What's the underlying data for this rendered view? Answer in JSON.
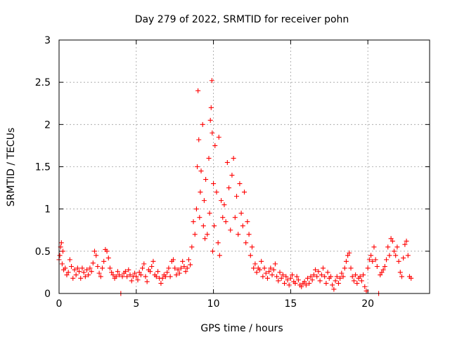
{
  "chart_data": {
    "type": "scatter",
    "title": "Day 279 of 2022, SRMTID for receiver pohn",
    "xlabel": "GPS time / hours",
    "ylabel": "SRMTID / TECUs",
    "xlim": [
      0,
      24
    ],
    "ylim": [
      0,
      3
    ],
    "x_ticks": [
      0,
      5,
      10,
      15,
      20
    ],
    "x_tick_labels": [
      "0",
      "5",
      "10",
      "15",
      "20"
    ],
    "y_ticks": [
      0,
      0.5,
      1,
      1.5,
      2,
      2.5,
      3
    ],
    "y_tick_labels": [
      "0",
      "0.5",
      "1",
      "1.5",
      "2",
      "2.5",
      "3"
    ],
    "grid": true,
    "marker": "+",
    "series": [
      {
        "name": "pohn",
        "color": "#ff0000",
        "points": [
          [
            0.0,
            0.4
          ],
          [
            0.05,
            0.45
          ],
          [
            0.1,
            0.55
          ],
          [
            0.15,
            0.6
          ],
          [
            0.2,
            0.35
          ],
          [
            0.25,
            0.5
          ],
          [
            0.3,
            0.28
          ],
          [
            0.4,
            0.3
          ],
          [
            0.5,
            0.22
          ],
          [
            0.6,
            0.25
          ],
          [
            0.7,
            0.4
          ],
          [
            0.8,
            0.32
          ],
          [
            0.9,
            0.18
          ],
          [
            1.0,
            0.28
          ],
          [
            1.1,
            0.22
          ],
          [
            1.2,
            0.3
          ],
          [
            1.3,
            0.26
          ],
          [
            1.4,
            0.18
          ],
          [
            1.5,
            0.3
          ],
          [
            1.6,
            0.25
          ],
          [
            1.7,
            0.2
          ],
          [
            1.8,
            0.28
          ],
          [
            1.9,
            0.22
          ],
          [
            2.0,
            0.3
          ],
          [
            2.1,
            0.26
          ],
          [
            2.2,
            0.36
          ],
          [
            2.3,
            0.5
          ],
          [
            2.4,
            0.45
          ],
          [
            2.5,
            0.32
          ],
          [
            2.6,
            0.24
          ],
          [
            2.7,
            0.2
          ],
          [
            2.8,
            0.3
          ],
          [
            2.9,
            0.38
          ],
          [
            3.0,
            0.52
          ],
          [
            3.1,
            0.5
          ],
          [
            3.2,
            0.42
          ],
          [
            3.3,
            0.3
          ],
          [
            3.4,
            0.25
          ],
          [
            3.5,
            0.22
          ],
          [
            3.6,
            0.18
          ],
          [
            3.7,
            0.2
          ],
          [
            3.8,
            0.26
          ],
          [
            3.9,
            0.22
          ],
          [
            4.0,
            0.0
          ],
          [
            4.1,
            0.2
          ],
          [
            4.2,
            0.24
          ],
          [
            4.3,
            0.26
          ],
          [
            4.4,
            0.2
          ],
          [
            4.5,
            0.28
          ],
          [
            4.6,
            0.22
          ],
          [
            4.7,
            0.15
          ],
          [
            4.8,
            0.2
          ],
          [
            4.9,
            0.24
          ],
          [
            5.0,
            0.2
          ],
          [
            5.1,
            0.16
          ],
          [
            5.2,
            0.25
          ],
          [
            5.3,
            0.22
          ],
          [
            5.4,
            0.3
          ],
          [
            5.5,
            0.35
          ],
          [
            5.6,
            0.2
          ],
          [
            5.7,
            0.14
          ],
          [
            5.8,
            0.28
          ],
          [
            5.9,
            0.26
          ],
          [
            6.0,
            0.32
          ],
          [
            6.1,
            0.38
          ],
          [
            6.2,
            0.22
          ],
          [
            6.3,
            0.2
          ],
          [
            6.4,
            0.26
          ],
          [
            6.5,
            0.18
          ],
          [
            6.6,
            0.12
          ],
          [
            6.7,
            0.18
          ],
          [
            6.8,
            0.22
          ],
          [
            6.9,
            0.2
          ],
          [
            7.0,
            0.25
          ],
          [
            7.1,
            0.3
          ],
          [
            7.2,
            0.2
          ],
          [
            7.3,
            0.38
          ],
          [
            7.4,
            0.4
          ],
          [
            7.5,
            0.3
          ],
          [
            7.6,
            0.22
          ],
          [
            7.7,
            0.28
          ],
          [
            7.8,
            0.24
          ],
          [
            7.9,
            0.3
          ],
          [
            8.0,
            0.38
          ],
          [
            8.1,
            0.32
          ],
          [
            8.2,
            0.26
          ],
          [
            8.3,
            0.3
          ],
          [
            8.4,
            0.4
          ],
          [
            8.5,
            0.34
          ],
          [
            8.6,
            0.55
          ],
          [
            8.7,
            0.85
          ],
          [
            8.8,
            0.7
          ],
          [
            8.9,
            1.0
          ],
          [
            8.95,
            1.5
          ],
          [
            9.0,
            2.4
          ],
          [
            9.05,
            1.82
          ],
          [
            9.1,
            0.9
          ],
          [
            9.15,
            1.2
          ],
          [
            9.2,
            1.45
          ],
          [
            9.3,
            2.0
          ],
          [
            9.35,
            0.8
          ],
          [
            9.4,
            1.1
          ],
          [
            9.45,
            0.65
          ],
          [
            9.5,
            1.35
          ],
          [
            9.6,
            0.7
          ],
          [
            9.7,
            1.6
          ],
          [
            9.75,
            0.95
          ],
          [
            9.8,
            2.05
          ],
          [
            9.85,
            2.2
          ],
          [
            9.9,
            2.52
          ],
          [
            9.92,
            1.9
          ],
          [
            9.95,
            0.5
          ],
          [
            10.0,
            1.3
          ],
          [
            10.05,
            0.8
          ],
          [
            10.1,
            1.75
          ],
          [
            10.2,
            1.2
          ],
          [
            10.3,
            0.6
          ],
          [
            10.35,
            1.85
          ],
          [
            10.4,
            0.45
          ],
          [
            10.5,
            1.1
          ],
          [
            10.6,
            0.9
          ],
          [
            10.7,
            1.05
          ],
          [
            10.8,
            0.85
          ],
          [
            10.9,
            1.55
          ],
          [
            11.0,
            1.25
          ],
          [
            11.1,
            0.75
          ],
          [
            11.2,
            1.4
          ],
          [
            11.3,
            1.6
          ],
          [
            11.4,
            0.9
          ],
          [
            11.5,
            1.15
          ],
          [
            11.6,
            0.7
          ],
          [
            11.7,
            1.3
          ],
          [
            11.8,
            0.95
          ],
          [
            11.9,
            0.8
          ],
          [
            12.0,
            1.2
          ],
          [
            12.1,
            0.6
          ],
          [
            12.2,
            0.85
          ],
          [
            12.3,
            0.7
          ],
          [
            12.4,
            0.45
          ],
          [
            12.5,
            0.55
          ],
          [
            12.6,
            0.3
          ],
          [
            12.7,
            0.35
          ],
          [
            12.8,
            0.25
          ],
          [
            12.9,
            0.3
          ],
          [
            13.0,
            0.28
          ],
          [
            13.1,
            0.38
          ],
          [
            13.2,
            0.2
          ],
          [
            13.3,
            0.3
          ],
          [
            13.4,
            0.24
          ],
          [
            13.5,
            0.18
          ],
          [
            13.6,
            0.26
          ],
          [
            13.7,
            0.3
          ],
          [
            13.8,
            0.22
          ],
          [
            13.9,
            0.28
          ],
          [
            14.0,
            0.35
          ],
          [
            14.1,
            0.2
          ],
          [
            14.2,
            0.15
          ],
          [
            14.3,
            0.25
          ],
          [
            14.4,
            0.18
          ],
          [
            14.5,
            0.22
          ],
          [
            14.6,
            0.12
          ],
          [
            14.7,
            0.2
          ],
          [
            14.8,
            0.16
          ],
          [
            14.9,
            0.1
          ],
          [
            15.0,
            0.18
          ],
          [
            15.1,
            0.22
          ],
          [
            15.2,
            0.14
          ],
          [
            15.3,
            0.12
          ],
          [
            15.4,
            0.2
          ],
          [
            15.5,
            0.16
          ],
          [
            15.6,
            0.1
          ],
          [
            15.7,
            0.08
          ],
          [
            15.8,
            0.12
          ],
          [
            15.9,
            0.14
          ],
          [
            16.0,
            0.1
          ],
          [
            16.1,
            0.18
          ],
          [
            16.2,
            0.12
          ],
          [
            16.3,
            0.2
          ],
          [
            16.4,
            0.16
          ],
          [
            16.5,
            0.22
          ],
          [
            16.6,
            0.28
          ],
          [
            16.7,
            0.2
          ],
          [
            16.8,
            0.26
          ],
          [
            16.9,
            0.15
          ],
          [
            17.0,
            0.22
          ],
          [
            17.1,
            0.3
          ],
          [
            17.2,
            0.2
          ],
          [
            17.3,
            0.12
          ],
          [
            17.4,
            0.25
          ],
          [
            17.5,
            0.18
          ],
          [
            17.6,
            0.2
          ],
          [
            17.7,
            0.1
          ],
          [
            17.8,
            0.05
          ],
          [
            17.9,
            0.15
          ],
          [
            18.0,
            0.2
          ],
          [
            18.1,
            0.12
          ],
          [
            18.2,
            0.18
          ],
          [
            18.3,
            0.24
          ],
          [
            18.4,
            0.2
          ],
          [
            18.5,
            0.3
          ],
          [
            18.6,
            0.38
          ],
          [
            18.7,
            0.45
          ],
          [
            18.8,
            0.48
          ],
          [
            18.9,
            0.3
          ],
          [
            19.0,
            0.2
          ],
          [
            19.1,
            0.15
          ],
          [
            19.2,
            0.22
          ],
          [
            19.3,
            0.12
          ],
          [
            19.4,
            0.18
          ],
          [
            19.5,
            0.2
          ],
          [
            19.6,
            0.15
          ],
          [
            19.7,
            0.22
          ],
          [
            19.8,
            0.08
          ],
          [
            19.9,
            0.03
          ],
          [
            20.0,
            0.3
          ],
          [
            20.1,
            0.4
          ],
          [
            20.2,
            0.45
          ],
          [
            20.3,
            0.38
          ],
          [
            20.4,
            0.55
          ],
          [
            20.5,
            0.4
          ],
          [
            20.6,
            0.32
          ],
          [
            20.7,
            0.0
          ],
          [
            20.8,
            0.22
          ],
          [
            20.9,
            0.25
          ],
          [
            21.0,
            0.28
          ],
          [
            21.1,
            0.32
          ],
          [
            21.2,
            0.4
          ],
          [
            21.3,
            0.55
          ],
          [
            21.4,
            0.45
          ],
          [
            21.5,
            0.65
          ],
          [
            21.6,
            0.62
          ],
          [
            21.7,
            0.5
          ],
          [
            21.8,
            0.45
          ],
          [
            21.9,
            0.55
          ],
          [
            22.0,
            0.38
          ],
          [
            22.1,
            0.25
          ],
          [
            22.2,
            0.2
          ],
          [
            22.3,
            0.42
          ],
          [
            22.4,
            0.58
          ],
          [
            22.5,
            0.62
          ],
          [
            22.6,
            0.45
          ],
          [
            22.7,
            0.2
          ],
          [
            22.8,
            0.18
          ]
        ]
      }
    ]
  }
}
